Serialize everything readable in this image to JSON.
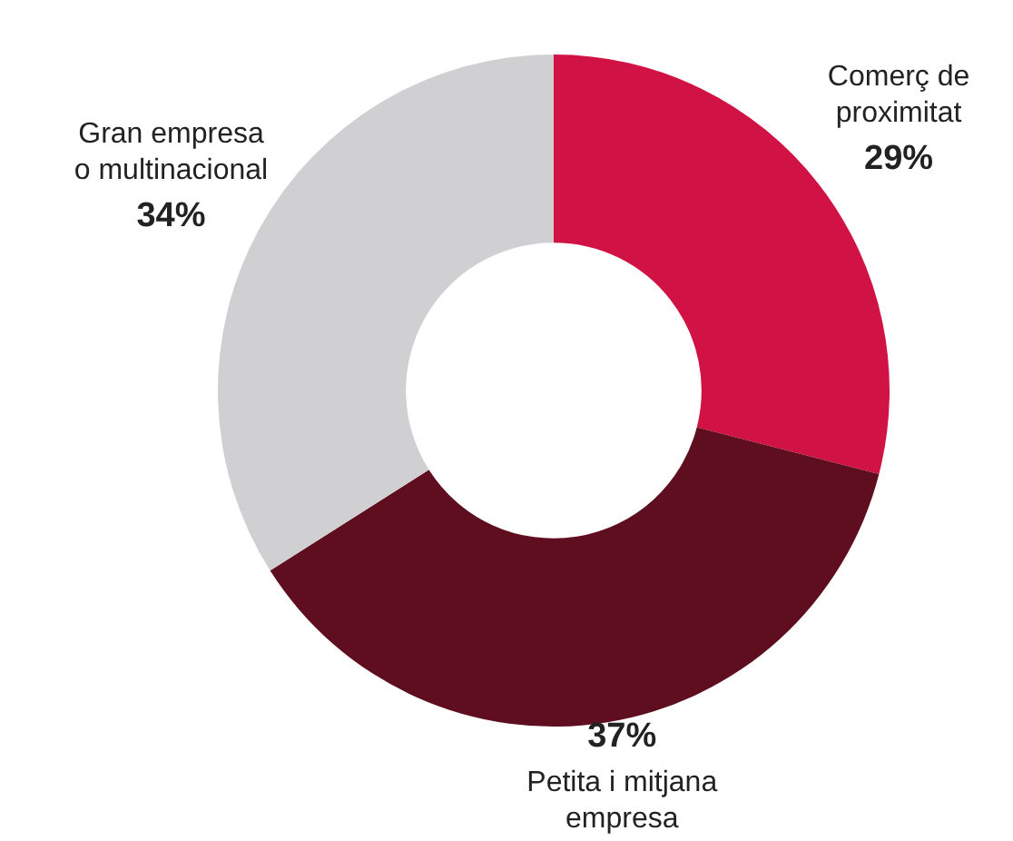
{
  "chart_data": {
    "type": "donut",
    "categories": [
      "Comerç de\nproximitat",
      "Petita i mitjana\nempresa",
      "Gran empresa\no multinacional"
    ],
    "values": [
      29,
      37,
      34
    ],
    "colors": [
      "#d01244",
      "#5e0e1e",
      "#d0d0d2"
    ],
    "value_labels": [
      "29%",
      "37%",
      "34%"
    ],
    "legend": false
  }
}
